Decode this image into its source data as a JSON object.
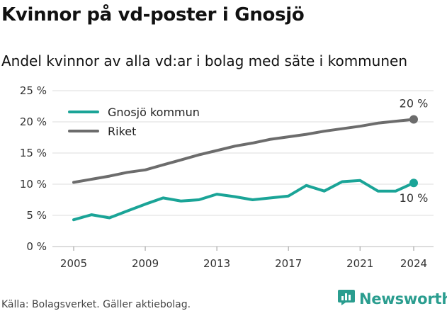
{
  "header": {
    "title": "Kvinnor på vd-poster i Gnosjö",
    "subtitle": "Andel kvinnor av alla vd:ar i bolag med säte i kommunen"
  },
  "footer": {
    "source": "Källa: Bolagsverket. Gäller aktiebolag.",
    "brand": "Newsworthy",
    "brand_icon": "newsworthy-logo-icon"
  },
  "colors": {
    "gnosjo": "#1aa497",
    "riket": "#6c6c6c",
    "grid": "#dedede",
    "brand": "#2a9d8f"
  },
  "chart_data": {
    "type": "line",
    "title": "Kvinnor på vd-poster i Gnosjö",
    "subtitle": "Andel kvinnor av alla vd:ar i bolag med säte i kommunen",
    "x": [
      2005,
      2006,
      2007,
      2008,
      2009,
      2010,
      2011,
      2012,
      2013,
      2014,
      2015,
      2016,
      2017,
      2018,
      2019,
      2020,
      2021,
      2022,
      2023,
      2024
    ],
    "x_ticks": [
      2005,
      2009,
      2013,
      2017,
      2021,
      2024
    ],
    "y_ticks": [
      0,
      5,
      10,
      15,
      20,
      25
    ],
    "y_tick_labels": [
      "0 %",
      "5 %",
      "10 %",
      "15 %",
      "20 %",
      "25 %"
    ],
    "ylim": [
      0,
      25
    ],
    "grid": "horizontal",
    "legend_position": "top-left",
    "series": [
      {
        "name": "Gnosjö kommun",
        "values": [
          4.3,
          5.1,
          4.6,
          5.7,
          6.8,
          7.8,
          7.3,
          7.5,
          8.4,
          8.0,
          7.5,
          7.8,
          8.1,
          9.8,
          8.9,
          10.4,
          10.6,
          8.9,
          8.9,
          10.2
        ],
        "end_label": "10 %"
      },
      {
        "name": "Riket",
        "values": [
          10.3,
          10.8,
          11.3,
          11.9,
          12.3,
          13.1,
          13.9,
          14.7,
          15.4,
          16.1,
          16.6,
          17.2,
          17.6,
          18.0,
          18.5,
          18.9,
          19.3,
          19.8,
          20.1,
          20.4
        ],
        "end_label": "20 %"
      }
    ]
  }
}
